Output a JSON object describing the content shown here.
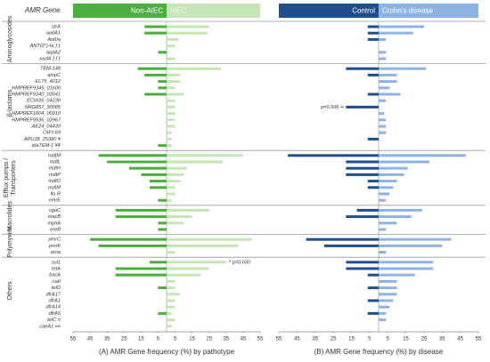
{
  "chart_data": [
    {
      "type": "butterfly",
      "title": "(A) AMR Gene frequency (%) by pathotype",
      "ylabel": "AMR Gene",
      "groups": [
        {
          "name": "Aminoglycosides",
          "categories": [
            "strA",
            "aadA1",
            "AntIIa",
            "ANT(2\")-Ia ƒƒ",
            "aadA2",
            "aadA ƒƒƒ"
          ]
        },
        {
          "name": "β-lactams",
          "categories": [
            "TEM-148",
            "ampC",
            "EL75_4012",
            "HMPREF9345_01600",
            "HMPREF9340_03041",
            "ECW26_04230",
            "NRG857_30085",
            "HMPREF1604_00910",
            "HMPREF9536_03967",
            "AE24_04439",
            "CMY-69",
            "APU18_25380 ¥",
            "blaTEM-1 ¥¥"
          ]
        },
        {
          "name": "Efflux pumps /\nTransporters",
          "categories": [
            "mdtM",
            "mdtL",
            "mdtH",
            "mdtP",
            "mdtO",
            "mdtM",
            "flo R",
            "emrE"
          ]
        },
        {
          "name": "Macrolides",
          "categories": [
            "vgaC",
            "macB",
            "mphA",
            "ereB"
          ]
        },
        {
          "name": "Polymyxins",
          "categories": [
            "pmrC",
            "pmrF",
            "arna"
          ]
        },
        {
          "name": "Others",
          "categories": [
            "sul1",
            "tetA",
            "bacA",
            "catI",
            "tetD",
            "dfrA17",
            "dfrA1",
            "dfrA14",
            "dfrA5",
            "tetC ¤",
            "caeA1 ¤¤"
          ]
        }
      ],
      "series": [
        {
          "name": "Non-AIEC",
          "color": "#4cae3e",
          "values": [
            13,
            13,
            0,
            0,
            5,
            0,
            17,
            13,
            5,
            5,
            13,
            0,
            0,
            0,
            0,
            0,
            0,
            0,
            5,
            40,
            35,
            22,
            15,
            10,
            10,
            0,
            5,
            30,
            30,
            5,
            5,
            45,
            40,
            0,
            10,
            30,
            30,
            0,
            5,
            0,
            0,
            0,
            5,
            0,
            0
          ]
        },
        {
          "name": "AIEC",
          "color": "#c6e5b6",
          "values": [
            25,
            24,
            7,
            5,
            0,
            5,
            32,
            8,
            8,
            5,
            10,
            5,
            5,
            5,
            5,
            5,
            3,
            3,
            3,
            45,
            33,
            12,
            10,
            8,
            5,
            5,
            3,
            25,
            15,
            10,
            0,
            50,
            42,
            5,
            35,
            25,
            20,
            5,
            5,
            8,
            5,
            5,
            3,
            5,
            3
          ]
        }
      ],
      "annotations": [
        "* p=0.030"
      ],
      "xlim": [
        -55,
        55
      ],
      "xticks": [
        {
          "value": -55,
          "label": "55"
        },
        {
          "value": -45,
          "label": "45"
        },
        {
          "value": -35,
          "label": "35"
        },
        {
          "value": -25,
          "label": "25"
        },
        {
          "value": -15,
          "label": "15"
        },
        {
          "value": -5,
          "label": "5"
        },
        5,
        15,
        25,
        35,
        45,
        55
      ]
    },
    {
      "type": "butterfly",
      "title": "(B) AMR Gene frequency (%) by disease",
      "series": [
        {
          "name": "Control",
          "color": "#1f4e8c",
          "values": [
            6,
            6,
            6,
            0,
            0,
            0,
            18,
            6,
            0,
            0,
            6,
            0,
            18,
            0,
            0,
            0,
            0,
            6,
            0,
            50,
            18,
            18,
            18,
            6,
            6,
            0,
            0,
            12,
            18,
            0,
            0,
            40,
            30,
            0,
            18,
            18,
            6,
            0,
            6,
            0,
            6,
            0,
            6,
            0,
            0
          ]
        },
        {
          "name": "Crohn's disease",
          "color": "#8db3e2",
          "values": [
            25,
            19,
            4,
            0,
            4,
            4,
            26,
            10,
            10,
            6,
            12,
            4,
            0,
            3,
            4,
            4,
            4,
            0,
            0,
            48,
            28,
            16,
            14,
            10,
            8,
            6,
            4,
            24,
            18,
            10,
            4,
            40,
            35,
            4,
            30,
            30,
            20,
            10,
            10,
            10,
            8,
            6,
            4,
            4,
            0
          ]
        }
      ],
      "annotations": [
        "p=0.006 ••"
      ],
      "xlim": [
        -55,
        55
      ],
      "xticks": [
        {
          "value": -55,
          "label": "55"
        },
        {
          "value": -45,
          "label": "45"
        },
        {
          "value": -35,
          "label": "35"
        },
        {
          "value": -25,
          "label": "25"
        },
        {
          "value": -15,
          "label": "15"
        },
        {
          "value": -5,
          "label": "5"
        },
        5,
        15,
        25,
        35,
        45,
        55
      ]
    }
  ]
}
